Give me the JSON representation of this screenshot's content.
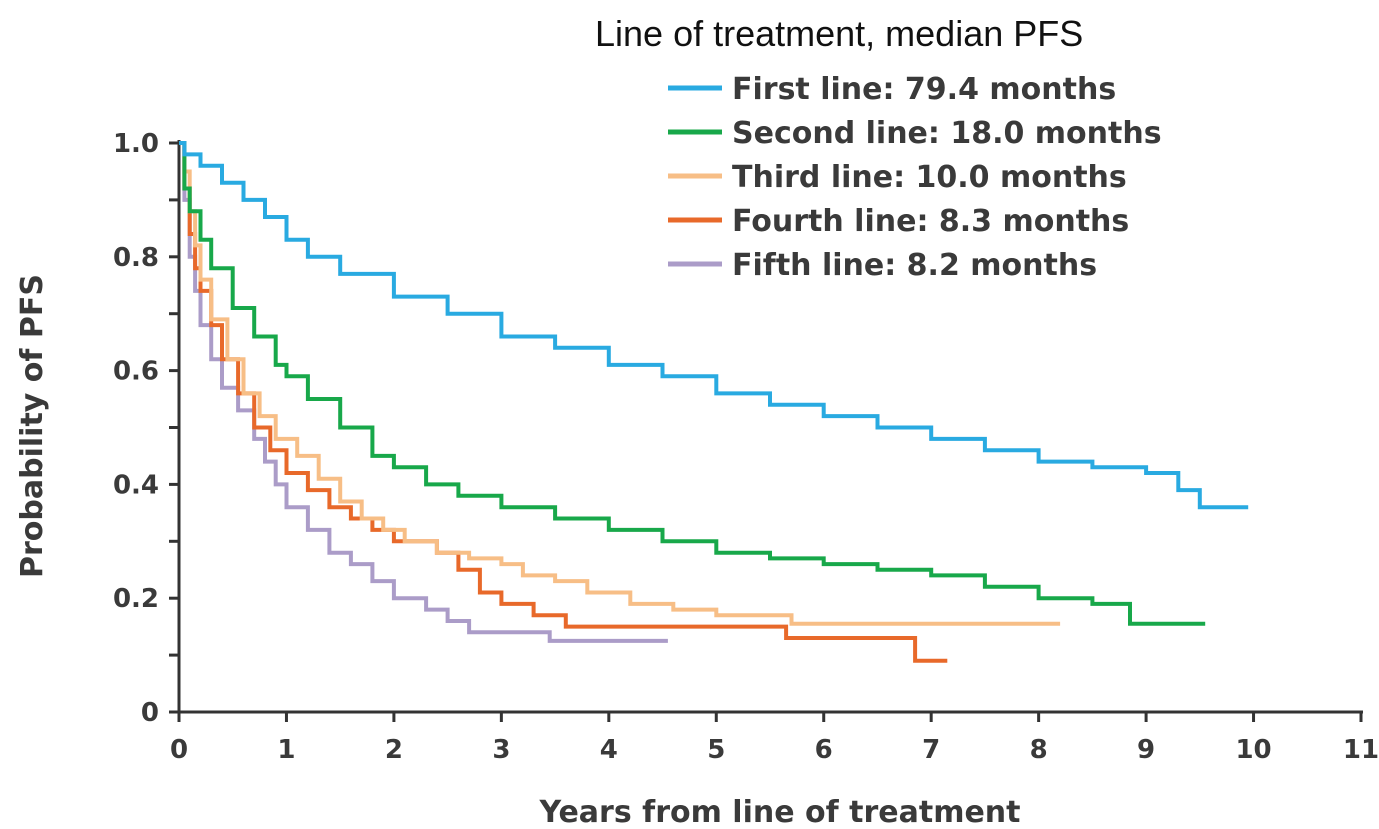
{
  "chart_data": {
    "type": "line",
    "step": true,
    "xlabel": "Years from line of treatment",
    "ylabel": "Probability of PFS",
    "xlim": [
      0,
      11
    ],
    "ylim": [
      0,
      1.0
    ],
    "x_ticks": [
      0,
      1,
      2,
      3,
      4,
      5,
      6,
      7,
      8,
      9,
      10,
      11
    ],
    "x_tick_labels": [
      "0",
      "1",
      "2",
      "3",
      "4",
      "5",
      "6",
      "7",
      "8",
      "9",
      "10",
      "11"
    ],
    "y_ticks": [
      0,
      0.2,
      0.4,
      0.6,
      0.8,
      1.0
    ],
    "y_tick_labels": [
      "0",
      "0.2",
      "0.4",
      "0.6",
      "0.8",
      "1.0"
    ],
    "grid": false,
    "legend": {
      "title": "Line of treatment, median PFS",
      "position": "top-right"
    },
    "series": [
      {
        "name": "First line: 79.4 months",
        "color": "#29aae1",
        "x": [
          0,
          0.05,
          0.2,
          0.4,
          0.6,
          0.8,
          1.0,
          1.2,
          1.5,
          2.0,
          2.5,
          3.0,
          3.5,
          4.0,
          4.5,
          5.0,
          5.5,
          6.0,
          6.5,
          7.0,
          7.5,
          8.0,
          8.5,
          9.0,
          9.3,
          9.5,
          9.95
        ],
        "y": [
          1.0,
          0.98,
          0.96,
          0.93,
          0.9,
          0.87,
          0.83,
          0.8,
          0.77,
          0.73,
          0.7,
          0.66,
          0.64,
          0.61,
          0.59,
          0.56,
          0.54,
          0.52,
          0.5,
          0.48,
          0.46,
          0.44,
          0.43,
          0.42,
          0.39,
          0.36,
          0.36
        ]
      },
      {
        "name": "Second line: 18.0 months",
        "color": "#18a84a",
        "x": [
          0,
          0.05,
          0.1,
          0.2,
          0.3,
          0.5,
          0.7,
          0.9,
          1.0,
          1.2,
          1.5,
          1.8,
          2.0,
          2.3,
          2.6,
          3.0,
          3.5,
          4.0,
          4.5,
          5.0,
          5.5,
          6.0,
          6.5,
          7.0,
          7.5,
          8.0,
          8.5,
          8.85,
          9.55
        ],
        "y": [
          1.0,
          0.92,
          0.88,
          0.83,
          0.78,
          0.71,
          0.66,
          0.61,
          0.59,
          0.55,
          0.5,
          0.45,
          0.43,
          0.4,
          0.38,
          0.36,
          0.34,
          0.32,
          0.3,
          0.28,
          0.27,
          0.26,
          0.25,
          0.24,
          0.22,
          0.2,
          0.19,
          0.155,
          0.155
        ]
      },
      {
        "name": "Third line: 10.0 months",
        "color": "#f7be86",
        "x": [
          0,
          0.05,
          0.1,
          0.15,
          0.2,
          0.3,
          0.45,
          0.6,
          0.75,
          0.9,
          1.1,
          1.3,
          1.5,
          1.7,
          1.9,
          2.1,
          2.4,
          2.7,
          3.0,
          3.2,
          3.5,
          3.8,
          4.2,
          4.6,
          5.0,
          5.7,
          8.2
        ],
        "y": [
          1.0,
          0.95,
          0.88,
          0.82,
          0.76,
          0.69,
          0.62,
          0.56,
          0.52,
          0.48,
          0.45,
          0.41,
          0.37,
          0.34,
          0.32,
          0.3,
          0.28,
          0.27,
          0.26,
          0.24,
          0.23,
          0.21,
          0.19,
          0.18,
          0.17,
          0.155,
          0.155
        ]
      },
      {
        "name": "Fourth line: 8.3 months",
        "color": "#e8692a",
        "x": [
          0,
          0.05,
          0.1,
          0.15,
          0.2,
          0.3,
          0.4,
          0.55,
          0.7,
          0.85,
          1.0,
          1.2,
          1.4,
          1.6,
          1.8,
          2.0,
          2.4,
          2.6,
          2.8,
          3.0,
          3.3,
          3.6,
          4.0,
          4.5,
          5.0,
          5.65,
          6.0,
          6.85,
          7.15
        ],
        "y": [
          1.0,
          0.92,
          0.84,
          0.78,
          0.74,
          0.68,
          0.62,
          0.56,
          0.5,
          0.46,
          0.42,
          0.39,
          0.36,
          0.34,
          0.32,
          0.3,
          0.28,
          0.25,
          0.21,
          0.19,
          0.17,
          0.15,
          0.15,
          0.15,
          0.15,
          0.13,
          0.13,
          0.09,
          0.09
        ]
      },
      {
        "name": "Fifth line: 8.2 months",
        "color": "#ab9cc8",
        "x": [
          0,
          0.05,
          0.1,
          0.15,
          0.2,
          0.3,
          0.4,
          0.55,
          0.7,
          0.8,
          0.9,
          1.0,
          1.2,
          1.4,
          1.6,
          1.8,
          2.0,
          2.3,
          2.5,
          2.7,
          3.0,
          3.45,
          4.55
        ],
        "y": [
          1.0,
          0.9,
          0.8,
          0.74,
          0.68,
          0.62,
          0.57,
          0.53,
          0.48,
          0.44,
          0.4,
          0.36,
          0.32,
          0.28,
          0.26,
          0.23,
          0.2,
          0.18,
          0.16,
          0.14,
          0.14,
          0.125,
          0.125
        ]
      }
    ]
  }
}
